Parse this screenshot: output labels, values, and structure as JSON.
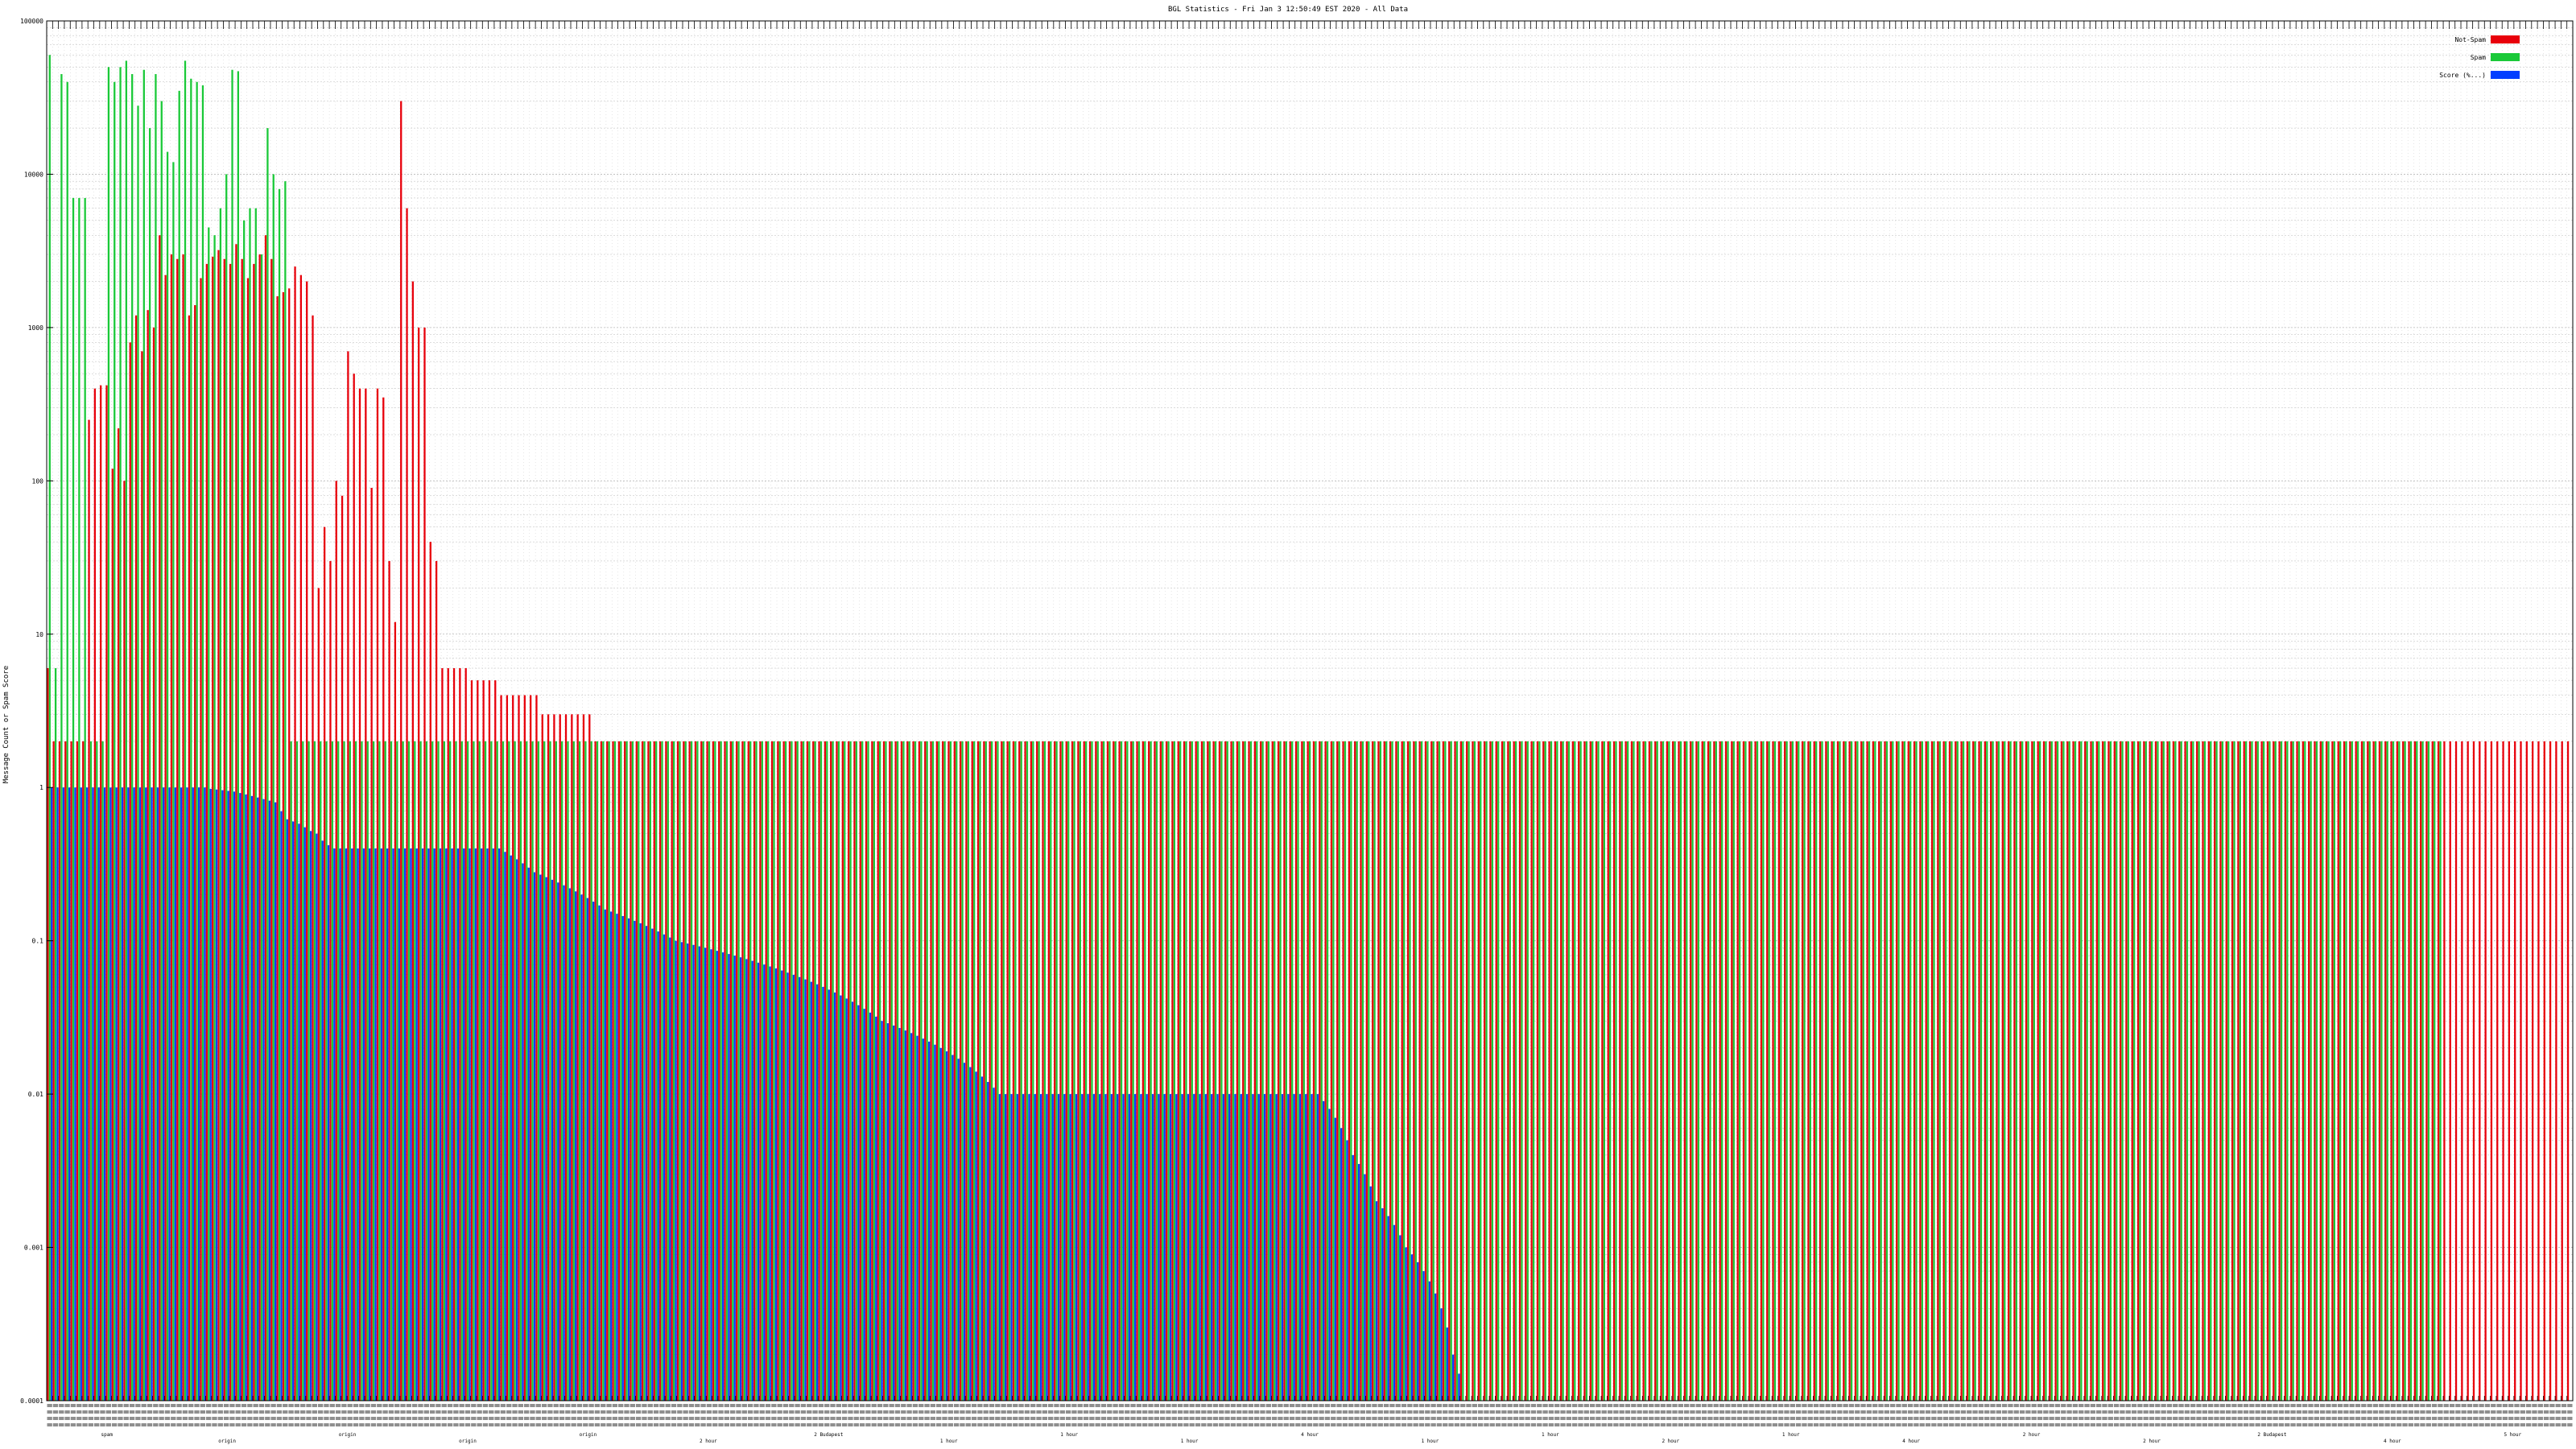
{
  "chart_data": {
    "type": "bar",
    "title": "BGL Statistics - Fri Jan  3 12:50:49 EST 2020 - All Data",
    "ylabel": "Message Count or Spam Score",
    "xlabel": "",
    "yscale": "log",
    "ylim": [
      0.0001,
      100000
    ],
    "yticks": [
      100000,
      10000,
      1000,
      100,
      10,
      1,
      0.1,
      0.01,
      0.001,
      0.0001
    ],
    "ytick_labels": [
      "100000",
      "10000",
      "1000",
      "100",
      "10",
      "1",
      "0.1",
      "0.01",
      "0.001",
      "0.0001"
    ],
    "grid": true,
    "legend_position": "top-right",
    "legend": [
      {
        "name": "Not-Spam",
        "color": "#e8000b"
      },
      {
        "name": "Spam",
        "color": "#1ac938"
      },
      {
        "name": "Score (%...)",
        "color": "#023eff"
      }
    ],
    "category_label_fragments": [
      "spam",
      "origin",
      "origin",
      "origin",
      "origin",
      "2 hour",
      "2 Budapest",
      "1 hour",
      "1 hour",
      "1 hour",
      "4 hour",
      "1 hour",
      "1 hour",
      "2 hour",
      "1 hour",
      "4 hour",
      "2 hour",
      "2 hour",
      "2 Budapest",
      "4 hour",
      "5 hour"
    ],
    "series": [
      {
        "name": "Not-Spam",
        "color": "#e8000b",
        "values": [
          6,
          2,
          2,
          2,
          2,
          2,
          2,
          250,
          400,
          420,
          420,
          120,
          220,
          100,
          800,
          1200,
          700,
          1300,
          1000,
          4000,
          2200,
          3000,
          2800,
          3000,
          1200,
          1400,
          2100,
          2600,
          2900,
          3200,
          2800,
          2600,
          3500,
          2800,
          2100,
          2600,
          3000,
          4000,
          2800,
          1600,
          1700,
          1800,
          2500,
          2200,
          2000,
          1200,
          20,
          50,
          30,
          100,
          80,
          700,
          500,
          400,
          400,
          90,
          400,
          350,
          30,
          12,
          30000,
          6000,
          2000,
          1000,
          1000,
          40,
          30,
          6,
          6,
          6,
          6,
          6,
          5,
          5,
          5,
          5,
          5,
          4,
          4,
          4,
          4,
          4,
          4,
          4,
          3,
          3,
          3,
          3,
          3,
          3,
          3,
          3,
          3,
          2,
          2,
          2,
          2,
          2,
          2,
          2,
          2,
          2,
          2,
          2,
          2,
          2,
          2,
          2,
          2,
          2,
          2,
          2,
          2,
          2,
          2,
          2,
          2,
          2,
          2,
          2,
          2,
          2,
          2,
          2,
          2,
          2,
          2,
          2,
          2,
          2,
          2,
          2,
          2,
          2,
          2,
          2,
          2,
          2,
          2,
          2,
          2,
          2,
          2,
          2,
          2,
          2,
          2,
          2,
          2,
          2,
          2,
          2,
          2,
          2,
          2,
          2,
          2,
          2,
          2,
          2,
          2,
          2,
          2,
          2,
          2,
          2,
          2,
          2,
          2,
          2,
          2,
          2,
          2,
          2,
          2,
          2,
          2,
          2,
          2,
          2,
          2,
          2,
          2,
          2,
          2,
          2,
          2,
          2,
          2,
          2,
          2,
          2,
          2,
          2,
          2,
          2,
          2,
          2,
          2,
          2,
          2,
          2,
          2,
          2,
          2,
          2,
          2,
          2,
          2,
          2,
          2,
          2,
          2,
          2,
          2,
          2,
          2,
          2,
          2,
          2,
          2,
          2,
          2,
          2,
          2,
          2,
          2,
          2,
          2,
          2,
          2,
          2,
          2,
          2,
          2,
          2,
          2,
          2,
          2,
          2,
          2,
          2,
          2,
          2,
          2,
          2,
          2,
          2,
          2,
          2,
          2,
          2,
          2,
          2,
          2,
          2,
          2,
          2,
          2,
          2,
          2,
          2,
          2,
          2,
          2,
          2,
          2,
          2,
          2,
          2,
          2,
          2,
          2,
          2,
          2,
          2,
          2,
          2,
          2,
          2,
          2,
          2,
          2,
          2,
          2,
          2,
          2,
          2,
          2,
          2,
          2,
          2,
          2,
          2,
          2,
          2,
          2,
          2,
          2,
          2,
          2,
          2,
          2,
          2,
          2,
          2,
          2,
          2,
          2,
          2,
          2,
          2,
          2,
          2,
          2,
          2,
          2,
          2,
          2,
          2,
          2,
          2,
          2,
          2,
          2,
          2,
          2,
          2,
          2,
          2,
          2,
          2,
          2,
          2,
          2,
          2,
          2,
          2,
          2,
          2,
          2,
          2,
          2,
          2,
          2,
          2,
          2,
          2,
          2,
          2,
          2,
          2,
          2,
          2,
          2,
          2,
          2,
          2,
          2,
          2,
          2,
          2,
          2,
          2,
          2,
          2,
          2,
          2,
          2,
          2,
          2,
          2,
          2,
          2,
          2,
          2,
          2,
          2,
          2,
          2,
          2,
          2,
          2,
          2,
          2,
          2,
          2,
          2,
          2,
          2,
          2,
          2,
          2,
          2,
          2,
          2,
          2,
          2,
          2,
          2,
          2,
          2,
          2,
          2,
          2,
          2,
          2,
          2,
          2,
          2,
          2,
          2,
          2,
          2,
          2,
          2,
          2,
          2,
          2,
          2,
          2,
          2,
          2,
          2,
          2,
          2,
          2,
          2,
          2
        ]
      },
      {
        "name": "Spam",
        "color": "#1ac938",
        "values": [
          60000,
          6,
          45000,
          40000,
          7000,
          7000,
          7000,
          2,
          2,
          2,
          50000,
          40000,
          50000,
          55000,
          45000,
          28000,
          48000,
          20000,
          45000,
          30000,
          14000,
          12000,
          35000,
          55000,
          42000,
          40000,
          38000,
          4500,
          4000,
          6000,
          10000,
          48000,
          47000,
          5000,
          6000,
          6000,
          3000,
          20000,
          10000,
          8000,
          9000,
          2,
          2,
          2,
          2,
          2,
          2,
          2,
          2,
          2,
          2,
          2,
          2,
          2,
          2,
          2,
          2,
          2,
          2,
          2,
          2,
          2,
          2,
          2,
          2,
          2,
          2,
          2,
          2,
          2,
          2,
          2,
          2,
          2,
          2,
          2,
          2,
          2,
          2,
          2,
          2,
          2,
          2,
          2,
          2,
          2,
          2,
          2,
          2,
          2,
          2,
          2,
          2,
          2,
          2,
          2,
          2,
          2,
          2,
          2,
          2,
          2,
          2,
          2,
          2,
          2,
          2,
          2,
          2,
          2,
          2,
          2,
          2,
          2,
          2,
          2,
          2,
          2,
          2,
          2,
          2,
          2,
          2,
          2,
          2,
          2,
          2,
          2,
          2,
          2,
          2,
          2,
          2,
          2,
          2,
          2,
          2,
          2,
          2,
          2,
          2,
          2,
          2,
          2,
          2,
          2,
          2,
          2,
          2,
          2,
          2,
          2,
          2,
          2,
          2,
          2,
          2,
          2,
          2,
          2,
          2,
          2,
          2,
          2,
          2,
          2,
          2,
          2,
          2,
          2,
          2,
          2,
          2,
          2,
          2,
          2,
          2,
          2,
          2,
          2,
          2,
          2,
          2,
          2,
          2,
          2,
          2,
          2,
          2,
          2,
          2,
          2,
          2,
          2,
          2,
          2,
          2,
          2,
          2,
          2,
          2,
          2,
          2,
          2,
          2,
          2,
          2,
          2,
          2,
          2,
          2,
          2,
          2,
          2,
          2,
          2,
          2,
          2,
          2,
          2,
          2,
          2,
          2,
          2,
          2,
          2,
          2,
          2,
          2,
          2,
          2,
          2,
          2,
          2,
          2,
          2,
          2,
          2,
          2,
          2,
          2,
          2,
          2,
          2,
          2,
          2,
          2,
          2,
          2,
          2,
          2,
          2,
          2,
          2,
          2,
          2,
          2,
          2,
          2,
          2,
          2,
          2,
          2,
          2,
          2,
          2,
          2,
          2,
          2,
          2,
          2,
          2,
          2,
          2,
          2,
          2,
          2,
          2,
          2,
          2,
          2,
          2,
          2,
          2,
          2,
          2,
          2,
          2,
          2,
          2,
          2,
          2,
          2,
          2,
          2,
          2,
          2,
          2,
          2,
          2,
          2,
          2,
          2,
          2,
          2,
          2,
          2,
          2,
          2,
          2,
          2,
          2,
          2,
          2,
          2,
          2,
          2,
          2,
          2,
          2,
          2,
          2,
          2,
          2,
          2,
          2,
          2,
          2,
          2,
          2,
          2,
          2,
          2,
          2,
          2,
          2,
          2,
          2,
          2,
          2,
          2,
          2,
          2,
          2,
          2,
          2,
          2,
          2,
          2,
          2,
          2,
          2,
          2,
          2,
          2,
          2,
          2,
          2,
          2,
          2,
          2,
          2,
          2,
          2,
          2,
          2,
          2,
          2,
          2,
          2,
          2,
          2,
          2,
          2,
          2,
          2,
          2,
          2,
          2,
          2,
          2,
          2,
          2,
          2,
          2,
          2,
          2,
          2,
          2,
          2,
          2,
          2,
          2,
          2,
          2,
          2,
          2,
          2,
          2,
          2,
          2,
          2,
          2,
          2,
          2,
          2,
          2
        ]
      },
      {
        "name": "Score (%...)",
        "color": "#023eff",
        "values": [
          1,
          1,
          1,
          1,
          1,
          1,
          1,
          1,
          1,
          1,
          1,
          1,
          1,
          1,
          1,
          1,
          1,
          1,
          1,
          1,
          1,
          1,
          1,
          1,
          1,
          1,
          1,
          0.98,
          0.97,
          0.96,
          0.95,
          0.94,
          0.92,
          0.9,
          0.88,
          0.86,
          0.84,
          0.82,
          0.8,
          0.7,
          0.62,
          0.6,
          0.58,
          0.55,
          0.52,
          0.5,
          0.45,
          0.42,
          0.4,
          0.4,
          0.4,
          0.4,
          0.4,
          0.4,
          0.4,
          0.4,
          0.4,
          0.4,
          0.4,
          0.4,
          0.4,
          0.4,
          0.4,
          0.4,
          0.4,
          0.4,
          0.4,
          0.4,
          0.4,
          0.4,
          0.4,
          0.4,
          0.4,
          0.4,
          0.4,
          0.4,
          0.4,
          0.38,
          0.36,
          0.34,
          0.32,
          0.3,
          0.28,
          0.27,
          0.26,
          0.25,
          0.24,
          0.23,
          0.22,
          0.21,
          0.2,
          0.19,
          0.18,
          0.17,
          0.16,
          0.155,
          0.15,
          0.145,
          0.14,
          0.135,
          0.13,
          0.125,
          0.12,
          0.115,
          0.11,
          0.105,
          0.1,
          0.098,
          0.096,
          0.094,
          0.092,
          0.09,
          0.088,
          0.086,
          0.084,
          0.082,
          0.08,
          0.078,
          0.076,
          0.074,
          0.072,
          0.07,
          0.068,
          0.066,
          0.064,
          0.062,
          0.06,
          0.058,
          0.056,
          0.054,
          0.052,
          0.05,
          0.048,
          0.046,
          0.044,
          0.042,
          0.04,
          0.038,
          0.036,
          0.034,
          0.032,
          0.03,
          0.029,
          0.028,
          0.027,
          0.026,
          0.025,
          0.024,
          0.023,
          0.022,
          0.021,
          0.02,
          0.019,
          0.018,
          0.017,
          0.016,
          0.015,
          0.014,
          0.013,
          0.012,
          0.011,
          0.01,
          0.01,
          0.01,
          0.01,
          0.01,
          0.01,
          0.01,
          0.01,
          0.01,
          0.01,
          0.01,
          0.01,
          0.01,
          0.01,
          0.01,
          0.01,
          0.01,
          0.01,
          0.01,
          0.01,
          0.01,
          0.01,
          0.01,
          0.01,
          0.01,
          0.01,
          0.01,
          0.01,
          0.01,
          0.01,
          0.01,
          0.01,
          0.01,
          0.01,
          0.01,
          0.01,
          0.01,
          0.01,
          0.01,
          0.01,
          0.01,
          0.01,
          0.01,
          0.01,
          0.01,
          0.01,
          0.01,
          0.01,
          0.01,
          0.01,
          0.01,
          0.01,
          0.01,
          0.01,
          0.01,
          0.009,
          0.008,
          0.007,
          0.006,
          0.005,
          0.004,
          0.0035,
          0.003,
          0.0025,
          0.002,
          0.0018,
          0.0016,
          0.0014,
          0.0012,
          0.001,
          0.0009,
          0.0008,
          0.0007,
          0.0006,
          0.0005,
          0.0004,
          0.0003,
          0.0002,
          0.00015
        ]
      }
    ]
  }
}
